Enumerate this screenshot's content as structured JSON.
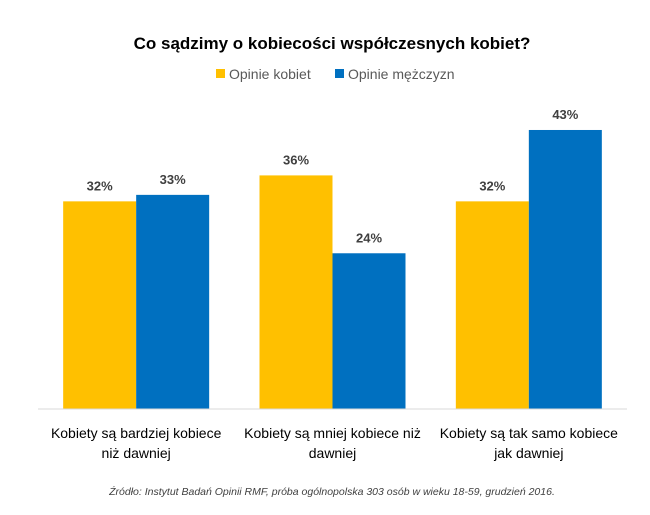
{
  "chart_data": {
    "type": "bar",
    "title": "Co sądzimy o kobiecości współczesnych kobiet?",
    "categories": [
      [
        "Kobiety są bardziej kobiece",
        "niż dawniej"
      ],
      [
        "Kobiety są mniej kobiece niż",
        "dawniej"
      ],
      [
        "Kobiety są tak samo kobiece",
        "jak dawniej"
      ]
    ],
    "series": [
      {
        "name": "Opinie kobiet",
        "values": [
          32,
          36,
          32
        ],
        "labels": [
          "32%",
          "36%",
          "32%"
        ],
        "color": "#FFC000"
      },
      {
        "name": "Opinie mężczyzn",
        "values": [
          33,
          24,
          43
        ],
        "labels": [
          "33%",
          "24%",
          "43%"
        ],
        "color": "#0070C0"
      }
    ],
    "ylim": [
      0,
      45
    ],
    "grid": false,
    "legend": "top",
    "source": "Źródło: Instytut Badań Opinii RMF, próba ogólnopolska 303 osób w wieku 18-59, grudzień 2016."
  }
}
